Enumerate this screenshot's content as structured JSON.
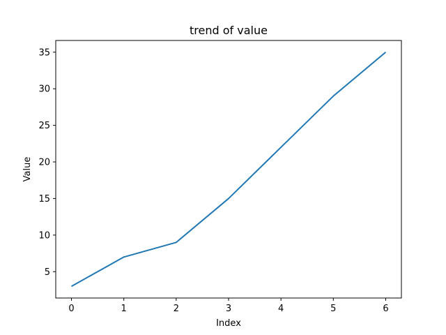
{
  "chart_data": {
    "type": "line",
    "title": "trend of value",
    "xlabel": "Index",
    "ylabel": "Value",
    "x": [
      0,
      1,
      2,
      3,
      4,
      5,
      6
    ],
    "series": [
      {
        "values": [
          3,
          7,
          9,
          15,
          22,
          29,
          35
        ],
        "color": "#1f77b4"
      }
    ],
    "xlim": [
      -0.3,
      6.3
    ],
    "ylim": [
      1.4,
      36.6
    ],
    "xticks": [
      0,
      1,
      2,
      3,
      4,
      5,
      6
    ],
    "yticks": [
      5,
      10,
      15,
      20,
      25,
      30,
      35
    ],
    "grid": false,
    "legend": "none"
  }
}
